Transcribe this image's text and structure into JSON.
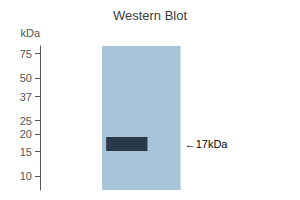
{
  "chart_data": {
    "type": "gel",
    "title": "Western Blot",
    "ylabel": "kDa",
    "log": "y",
    "ylim": [
      8,
      85
    ],
    "yticks": [
      75,
      50,
      37,
      25,
      20,
      15,
      10
    ],
    "values": [
      17
    ],
    "colors": [
      "#a8c4d8",
      "#2a3a4a"
    ],
    "annotations": [
      {
        "text": "←17kDa",
        "y": 17
      }
    ],
    "tick_labels": "y",
    "grid": false
  }
}
